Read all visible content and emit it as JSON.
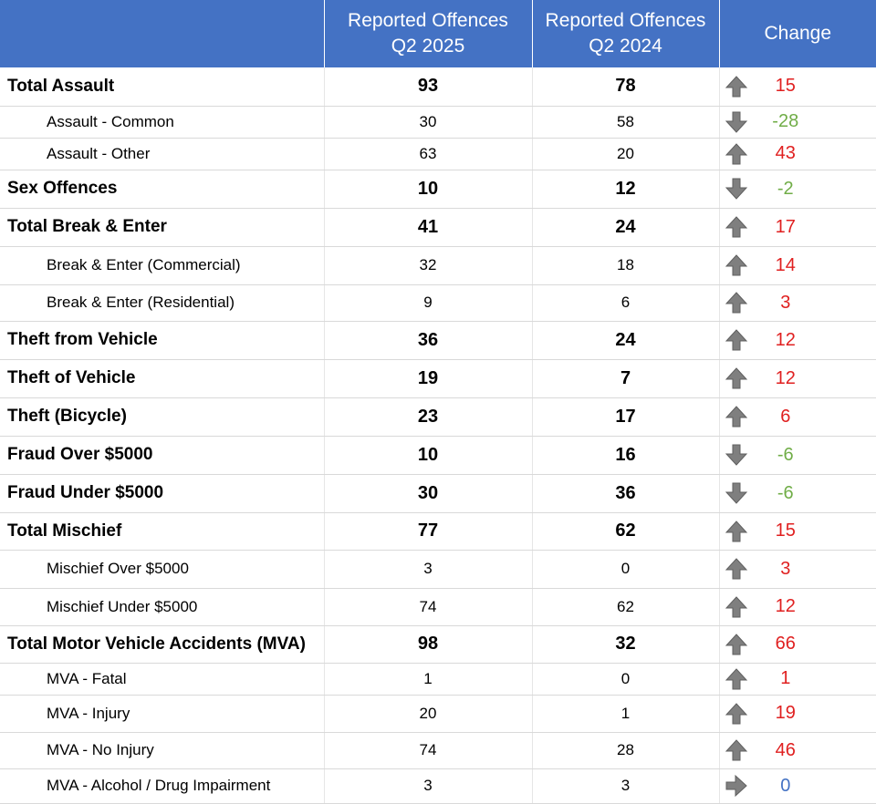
{
  "header": {
    "col1": "",
    "col2_line1": "Reported Offences",
    "col2_line2": "Q2 2025",
    "col3_line1": "Reported Offences",
    "col3_line2": "Q2 2024",
    "col4": "Change"
  },
  "colors": {
    "header_bg": "#4472c4",
    "increase": "#e02020",
    "decrease": "#70ad47",
    "no_change": "#4472c4",
    "arrow": "#7f7f7f"
  },
  "rows": [
    {
      "label": "Total Assault",
      "q2025": "93",
      "q2024": "78",
      "change": "15",
      "direction": "up",
      "level": "main"
    },
    {
      "label": "Assault - Common",
      "q2025": "30",
      "q2024": "58",
      "change": "-28",
      "direction": "down",
      "level": "sub"
    },
    {
      "label": "Assault - Other",
      "q2025": "63",
      "q2024": "20",
      "change": "43",
      "direction": "up",
      "level": "sub"
    },
    {
      "label": "Sex Offences",
      "q2025": "10",
      "q2024": "12",
      "change": "-2",
      "direction": "down",
      "level": "main"
    },
    {
      "label": "Total Break & Enter",
      "q2025": "41",
      "q2024": "24",
      "change": "17",
      "direction": "up",
      "level": "main"
    },
    {
      "label": "Break & Enter (Commercial)",
      "q2025": "32",
      "q2024": "18",
      "change": "14",
      "direction": "up",
      "level": "sub"
    },
    {
      "label": "Break & Enter (Residential)",
      "q2025": "9",
      "q2024": "6",
      "change": "3",
      "direction": "up",
      "level": "sub"
    },
    {
      "label": "Theft from Vehicle",
      "q2025": "36",
      "q2024": "24",
      "change": "12",
      "direction": "up",
      "level": "main"
    },
    {
      "label": "Theft of Vehicle",
      "q2025": "19",
      "q2024": "7",
      "change": "12",
      "direction": "up",
      "level": "main"
    },
    {
      "label": "Theft (Bicycle)",
      "q2025": "23",
      "q2024": "17",
      "change": "6",
      "direction": "up",
      "level": "main"
    },
    {
      "label": "Fraud Over $5000",
      "q2025": "10",
      "q2024": "16",
      "change": "-6",
      "direction": "down",
      "level": "main"
    },
    {
      "label": "Fraud Under $5000",
      "q2025": "30",
      "q2024": "36",
      "change": "-6",
      "direction": "down",
      "level": "main"
    },
    {
      "label": "Total Mischief",
      "q2025": "77",
      "q2024": "62",
      "change": "15",
      "direction": "up",
      "level": "main"
    },
    {
      "label": "Mischief Over $5000",
      "q2025": "3",
      "q2024": "0",
      "change": "3",
      "direction": "up",
      "level": "sub"
    },
    {
      "label": "Mischief Under $5000",
      "q2025": "74",
      "q2024": "62",
      "change": "12",
      "direction": "up",
      "level": "sub"
    },
    {
      "label": "Total Motor Vehicle Accidents (MVA)",
      "q2025": "98",
      "q2024": "32",
      "change": "66",
      "direction": "up",
      "level": "main"
    },
    {
      "label": "MVA - Fatal",
      "q2025": "1",
      "q2024": "0",
      "change": "1",
      "direction": "up",
      "level": "sub"
    },
    {
      "label": "MVA - Injury",
      "q2025": "20",
      "q2024": "1",
      "change": "19",
      "direction": "up",
      "level": "sub"
    },
    {
      "label": "MVA -  No Injury",
      "q2025": "74",
      "q2024": "28",
      "change": "46",
      "direction": "up",
      "level": "sub"
    },
    {
      "label": "MVA - Alcohol / Drug Impairment",
      "q2025": "3",
      "q2024": "3",
      "change": "0",
      "direction": "right",
      "level": "sub"
    }
  ]
}
